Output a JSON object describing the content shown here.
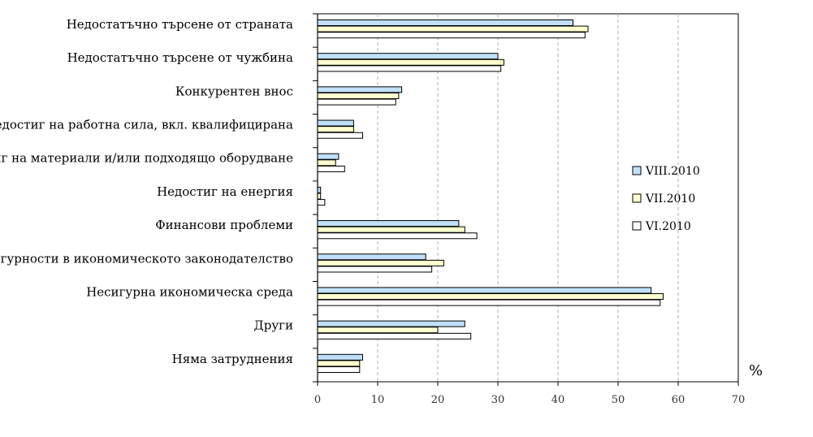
{
  "chart_data": {
    "type": "bar",
    "orientation": "horizontal",
    "categories": [
      "Недостатъчно търсене от страната",
      "Недостатъчно търсене от чужбина",
      "Конкурентен внос",
      "Недостиг на работна сила, вкл. квалифицирана",
      "Недостиг на материали и/или подходящо оборудване",
      "Недостиг на енергия",
      "Финансови проблеми",
      "Несигурности в икономическото законодателство",
      "Несигурна икономическа среда",
      "Други",
      "Няма затруднения"
    ],
    "series": [
      {
        "name": "VIII.2010",
        "color": "#bfe0f8",
        "values": [
          42.5,
          30,
          14,
          6,
          3.5,
          0.5,
          23.5,
          18,
          55.5,
          24.5,
          7.5
        ]
      },
      {
        "name": "VII.2010",
        "color": "#ffffd0",
        "values": [
          45,
          31,
          13.5,
          6,
          3,
          0.5,
          24.5,
          21,
          57.5,
          20,
          7
        ]
      },
      {
        "name": "VI.2010",
        "color": "#ffffff",
        "values": [
          44.5,
          30.5,
          13,
          7.5,
          4.5,
          1.2,
          26.5,
          19,
          57,
          25.5,
          7
        ]
      }
    ],
    "xlim": [
      0,
      70
    ],
    "xticks": [
      0,
      10,
      20,
      30,
      40,
      50,
      60,
      70
    ],
    "xlabel": "%",
    "gridlines": "vertical dashed",
    "legend_position": "right"
  }
}
